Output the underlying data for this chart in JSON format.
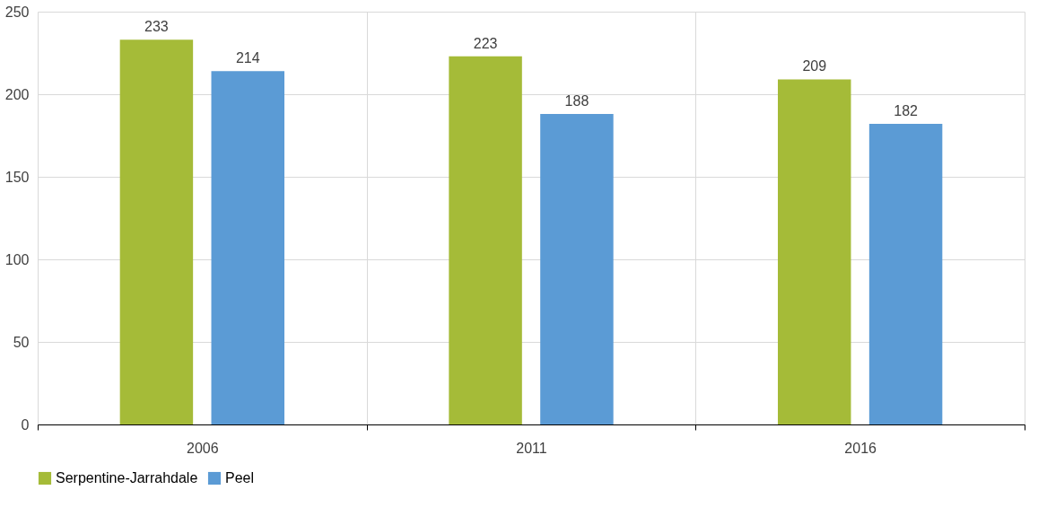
{
  "chart_data": {
    "type": "bar",
    "categories": [
      "2006",
      "2011",
      "2016"
    ],
    "series": [
      {
        "name": "Serpentine-Jarrahdale",
        "color": "#a5bb38",
        "values": [
          233,
          223,
          209
        ]
      },
      {
        "name": "Peel",
        "color": "#5b9bd5",
        "values": [
          214,
          188,
          182
        ]
      }
    ],
    "ylim": [
      0,
      250
    ],
    "yticks": [
      0,
      50,
      100,
      150,
      200,
      250
    ],
    "grid": true,
    "legend": "bottom",
    "data_labels": true
  }
}
